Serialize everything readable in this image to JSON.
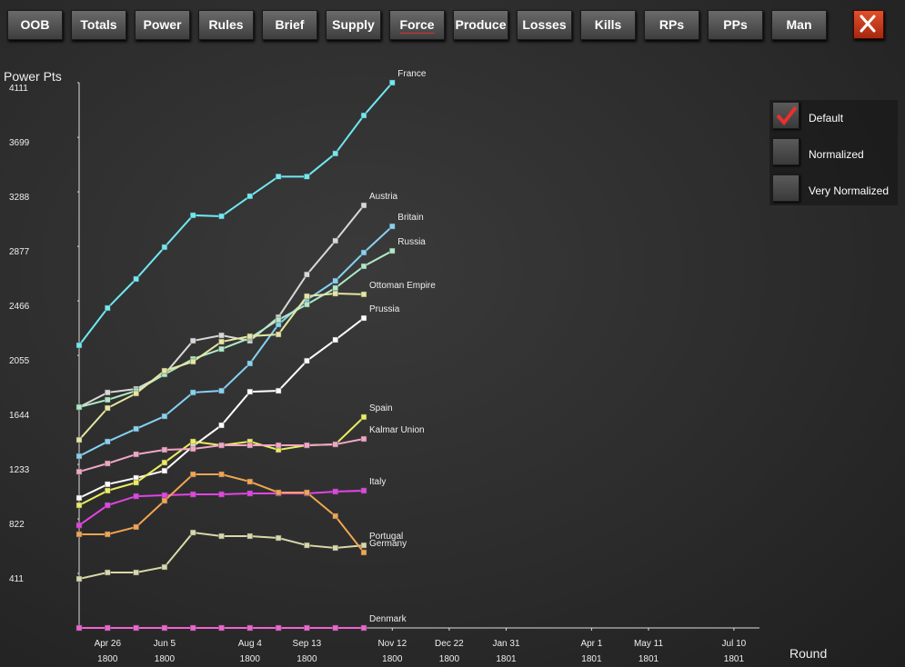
{
  "toolbar": {
    "buttons": [
      {
        "label": "OOB"
      },
      {
        "label": "Totals"
      },
      {
        "label": "Power"
      },
      {
        "label": "Rules"
      },
      {
        "label": "Brief"
      },
      {
        "label": "Supply"
      },
      {
        "label": "Force",
        "selected": true
      },
      {
        "label": "Produce"
      },
      {
        "label": "Losses"
      },
      {
        "label": "Kills"
      },
      {
        "label": "RPs"
      },
      {
        "label": "PPs"
      },
      {
        "label": "Man"
      }
    ]
  },
  "options": [
    {
      "label": "Default",
      "checked": true
    },
    {
      "label": "Normalized",
      "checked": false
    },
    {
      "label": "Very Normalized",
      "checked": false
    }
  ],
  "chart_data": {
    "type": "line",
    "y_label": "Power Pts",
    "x_label": "Round",
    "x": [
      0,
      1,
      2,
      3,
      4,
      5,
      6,
      7,
      8,
      9,
      10,
      11
    ],
    "xlim": [
      0,
      26
    ],
    "xticks": [
      {
        "value": 1,
        "label": "Apr 26\n1800"
      },
      {
        "value": 3,
        "label": "Jun 5\n1800"
      },
      {
        "value": 6,
        "label": "Aug 4\n1800"
      },
      {
        "value": 8,
        "label": "Sep 13\n1800"
      },
      {
        "value": 11,
        "label": "Nov 12\n1800"
      },
      {
        "value": 13,
        "label": "Dec 22\n1800"
      },
      {
        "value": 15,
        "label": "Jan 31\n1801"
      },
      {
        "value": 18,
        "label": "Apr 1\n1801"
      },
      {
        "value": 20,
        "label": "May 11\n1801"
      },
      {
        "value": 23,
        "label": "Jul 10\n1801"
      }
    ],
    "ylim": [
      0,
      4111
    ],
    "yticks": [
      411,
      822,
      1233,
      1644,
      2055,
      2466,
      2877,
      3288,
      3699,
      4111
    ],
    "series": [
      {
        "name": "France",
        "color": "#6fe9f2",
        "values": [
          2131,
          2412,
          2631,
          2871,
          3111,
          3104,
          3255,
          3403,
          3403,
          3577,
          3864,
          4111
        ]
      },
      {
        "name": "Austria",
        "color": "#d8d8d8",
        "values": [
          1665,
          1775,
          1802,
          1912,
          2165,
          2206,
          2165,
          2343,
          2665,
          2919,
          3186,
          null
        ]
      },
      {
        "name": "Britain",
        "color": "#86d2f2",
        "values": [
          1295,
          1405,
          1501,
          1596,
          1775,
          1788,
          1994,
          2288,
          2473,
          2617,
          2830,
          3028
        ]
      },
      {
        "name": "Russia",
        "color": "#aeeac6",
        "values": [
          1665,
          1720,
          1788,
          1912,
          2028,
          2103,
          2186,
          2323,
          2439,
          2563,
          2727,
          2843
        ]
      },
      {
        "name": "Ottoman Empire",
        "color": "#e6e6a2",
        "values": [
          1418,
          1658,
          1768,
          1939,
          2008,
          2158,
          2199,
          2213,
          2501,
          2521,
          2515,
          null
        ]
      },
      {
        "name": "Prussia",
        "color": "#ffffff",
        "values": [
          980,
          1083,
          1131,
          1185,
          1370,
          1528,
          1781,
          1788,
          2014,
          2172,
          2336,
          null
        ]
      },
      {
        "name": "Spain",
        "color": "#ecec62",
        "values": [
          925,
          1035,
          1096,
          1247,
          1405,
          1377,
          1405,
          1343,
          1377,
          1384,
          1590,
          null
        ]
      },
      {
        "name": "Kalmar Union",
        "color": "#f2a6c6",
        "values": [
          1178,
          1240,
          1309,
          1343,
          1350,
          1377,
          1377,
          1377,
          1377,
          1384,
          1425,
          null
        ]
      },
      {
        "name": "Italy",
        "color": "#e244e6",
        "values": [
          774,
          925,
          993,
          1000,
          1007,
          1007,
          1014,
          1014,
          1014,
          1028,
          1035,
          null
        ]
      },
      {
        "name": "Portugal",
        "color": "#d8d8aa",
        "values": [
          370,
          418,
          418,
          459,
          719,
          692,
          692,
          678,
          623,
          603,
          623,
          null
        ]
      },
      {
        "name": "Germany",
        "color": "#f2a452",
        "values": [
          706,
          706,
          761,
          959,
          1158,
          1158,
          1103,
          1021,
          1021,
          843,
          569,
          null
        ]
      },
      {
        "name": "Denmark",
        "color": "#f064d2",
        "values": [
          0,
          0,
          0,
          0,
          0,
          0,
          0,
          0,
          0,
          0,
          0,
          null
        ]
      }
    ]
  }
}
